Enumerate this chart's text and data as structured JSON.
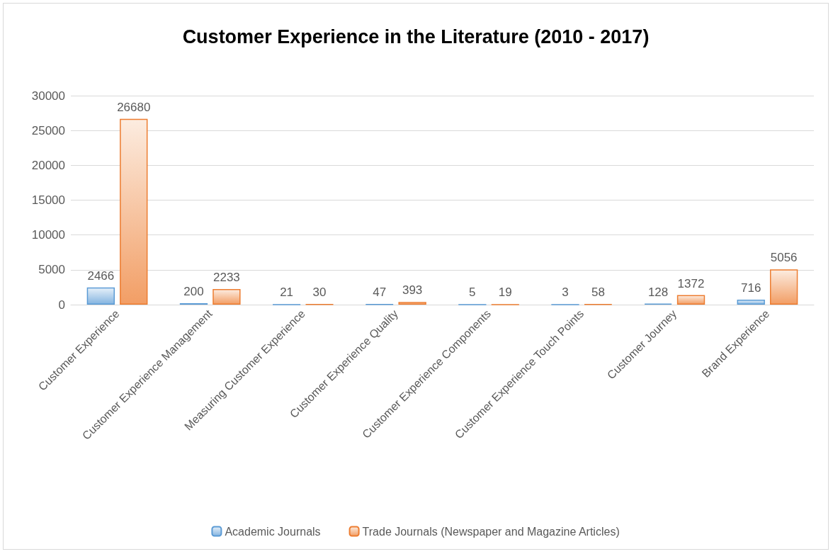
{
  "chart_data": {
    "type": "bar",
    "title": "Customer Experience in the Literature (2010 - 2017)",
    "categories": [
      "Customer Experience",
      "Customer Experience Management",
      "Measuring Customer Experience",
      "Customer Experience Quality",
      "Customer Experience Components",
      "Customer Experience Touch Points",
      "Customer Journey",
      "Brand Experience"
    ],
    "series": [
      {
        "name": "Academic Journals",
        "color": "#5b9bd5",
        "values": [
          2466,
          200,
          21,
          47,
          5,
          3,
          128,
          716
        ]
      },
      {
        "name": "Trade Journals (Newspaper and Magazine Articles)",
        "color": "#ed7d31",
        "values": [
          26680,
          2233,
          30,
          393,
          19,
          58,
          1372,
          5056
        ]
      }
    ],
    "ylim": [
      0,
      30000
    ],
    "yticks": [
      0,
      5000,
      10000,
      15000,
      20000,
      25000,
      30000
    ],
    "grid": "y",
    "legend": "bottom",
    "data_labels": true
  }
}
